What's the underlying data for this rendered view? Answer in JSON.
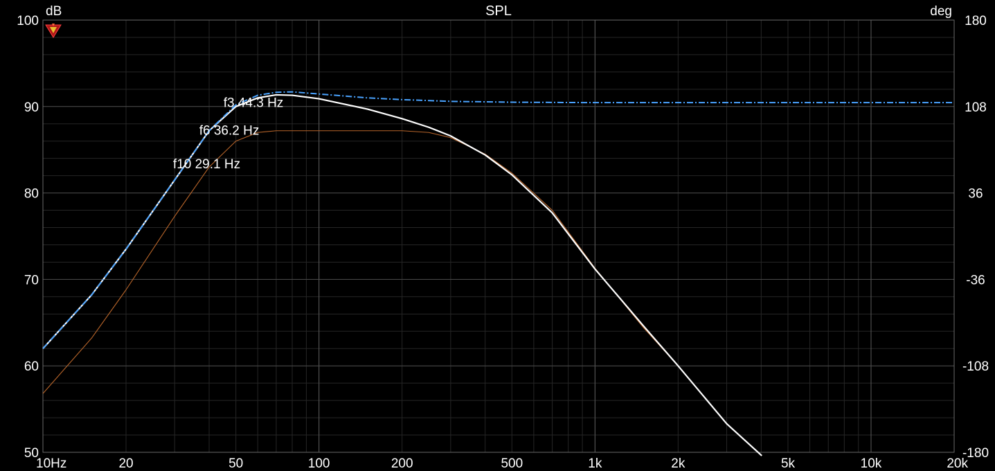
{
  "chart_data": {
    "type": "line",
    "title": "SPL",
    "y_unit_left": "dB",
    "y_unit_right": "deg",
    "x_scale": "log",
    "xlim": [
      10,
      20000
    ],
    "ylim": [
      50,
      100
    ],
    "y2lim": [
      -180,
      180
    ],
    "grid": true,
    "x_ticks": [
      {
        "value": 10,
        "label": "10Hz"
      },
      {
        "value": 20,
        "label": "20"
      },
      {
        "value": 50,
        "label": "50"
      },
      {
        "value": 100,
        "label": "100"
      },
      {
        "value": 200,
        "label": "200"
      },
      {
        "value": 500,
        "label": "500"
      },
      {
        "value": 1000,
        "label": "1k"
      },
      {
        "value": 2000,
        "label": "2k"
      },
      {
        "value": 5000,
        "label": "5k"
      },
      {
        "value": 10000,
        "label": "10k"
      },
      {
        "value": 20000,
        "label": "20k"
      }
    ],
    "y_ticks": [
      {
        "value": 100,
        "label": "100"
      },
      {
        "value": 90,
        "label": "90"
      },
      {
        "value": 80,
        "label": "80"
      },
      {
        "value": 70,
        "label": "70"
      },
      {
        "value": 60,
        "label": "60"
      },
      {
        "value": 50,
        "label": "50"
      }
    ],
    "y2_ticks": [
      {
        "value": 180,
        "label": "180"
      },
      {
        "value": 108,
        "label": "108"
      },
      {
        "value": 36,
        "label": "36"
      },
      {
        "value": -36,
        "label": "-36"
      },
      {
        "value": -108,
        "label": "-108"
      },
      {
        "value": -180,
        "label": "-180"
      }
    ],
    "annotations": [
      {
        "text": "f3 44.3 Hz",
        "x": 44.3,
        "y": 90.5
      },
      {
        "text": "f6 36.2 Hz",
        "x": 36.2,
        "y": 87.3
      },
      {
        "text": "f10 29.1 Hz",
        "x": 29.1,
        "y": 83.4
      }
    ],
    "series": [
      {
        "color": "#4aa3ff",
        "style": "dashdot",
        "points": [
          [
            10,
            62.0
          ],
          [
            15,
            68.2
          ],
          [
            20,
            73.5
          ],
          [
            30,
            81.5
          ],
          [
            40,
            87.2
          ],
          [
            50,
            90.2
          ],
          [
            60,
            91.3
          ],
          [
            70,
            91.65
          ],
          [
            80,
            91.7
          ],
          [
            100,
            91.45
          ],
          [
            150,
            91.0
          ],
          [
            200,
            90.8
          ],
          [
            300,
            90.6
          ],
          [
            500,
            90.5
          ],
          [
            1000,
            90.45
          ],
          [
            2000,
            90.45
          ],
          [
            5000,
            90.45
          ],
          [
            10000,
            90.45
          ],
          [
            20000,
            90.45
          ]
        ]
      },
      {
        "color": "#ffffff",
        "style": "solid",
        "points": [
          [
            10,
            62.0
          ],
          [
            15,
            68.2
          ],
          [
            20,
            73.5
          ],
          [
            30,
            81.5
          ],
          [
            40,
            87.2
          ],
          [
            50,
            90.0
          ],
          [
            60,
            91.0
          ],
          [
            70,
            91.35
          ],
          [
            80,
            91.3
          ],
          [
            100,
            90.9
          ],
          [
            150,
            89.7
          ],
          [
            200,
            88.6
          ],
          [
            250,
            87.6
          ],
          [
            300,
            86.6
          ],
          [
            400,
            84.4
          ],
          [
            500,
            82.1
          ],
          [
            700,
            77.7
          ],
          [
            1000,
            71.2
          ],
          [
            1500,
            64.6
          ],
          [
            2000,
            60.0
          ],
          [
            3000,
            53.3
          ],
          [
            4020,
            49.6
          ]
        ]
      },
      {
        "color": "#b8652a",
        "style": "solid",
        "points": [
          [
            10,
            56.8
          ],
          [
            15,
            63.2
          ],
          [
            20,
            68.8
          ],
          [
            30,
            77.3
          ],
          [
            40,
            83.0
          ],
          [
            50,
            86.0
          ],
          [
            60,
            87.0
          ],
          [
            70,
            87.2
          ],
          [
            100,
            87.2
          ],
          [
            150,
            87.2
          ],
          [
            200,
            87.2
          ],
          [
            250,
            87.0
          ],
          [
            300,
            86.4
          ],
          [
            400,
            84.5
          ],
          [
            500,
            82.3
          ],
          [
            700,
            78.0
          ],
          [
            1000,
            71.3
          ],
          [
            1500,
            64.4
          ],
          [
            2000,
            60.0
          ],
          [
            3000,
            53.3
          ],
          [
            4020,
            49.6
          ]
        ]
      }
    ]
  },
  "colors": {
    "background": "#000000",
    "grid_major": "#4a4a4a",
    "grid_minor": "#262626",
    "text": "#ffffff"
  },
  "logo_icon": "rew-logo-icon"
}
